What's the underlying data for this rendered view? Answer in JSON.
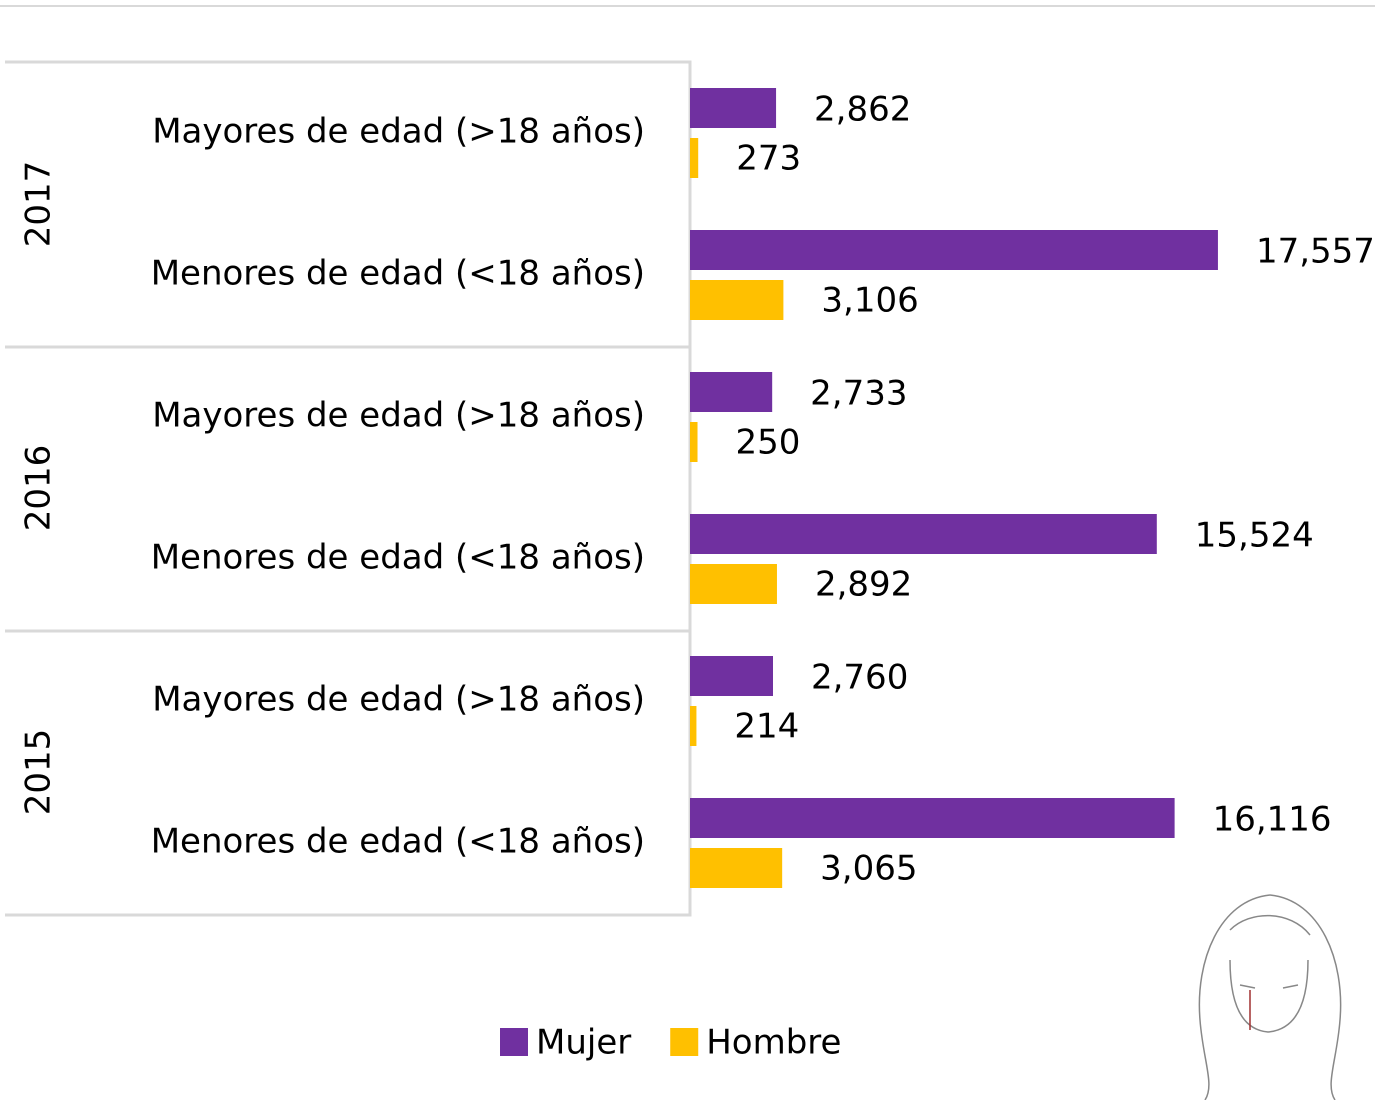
{
  "chart_data": {
    "type": "bar",
    "orientation": "horizontal",
    "groups": [
      "2017",
      "2016",
      "2015"
    ],
    "categories": [
      "Mayores de edad (>18 años)",
      "Menores de edad (<18 años)",
      "Mayores de edad (>18 años)",
      "Menores de edad (<18 años)",
      "Mayores de edad (>18 años)",
      "Menores de edad (<18 años)"
    ],
    "series": [
      {
        "name": "Mujer",
        "color": "#7030a0",
        "values": [
          2862,
          17557,
          2733,
          15524,
          2760,
          16116
        ],
        "value_labels": [
          "2,862",
          "17,557",
          "2,733",
          "15,524",
          "2,760",
          "16,116"
        ]
      },
      {
        "name": "Hombre",
        "color": "#ffc000",
        "values": [
          273,
          3106,
          250,
          2892,
          214,
          3065
        ],
        "value_labels": [
          "273",
          "3,106",
          "250",
          "2,892",
          "214",
          "3,065"
        ]
      }
    ],
    "legend": "bottom"
  }
}
